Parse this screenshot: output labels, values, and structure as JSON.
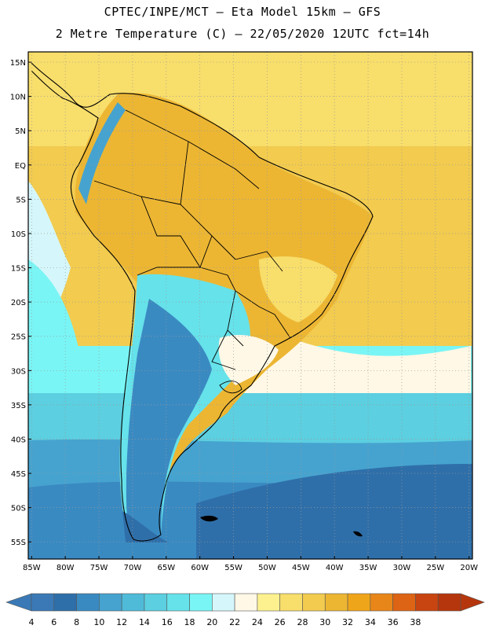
{
  "title_line1": "CPTEC/INPE/MCT –  Eta Model 15km – GFS",
  "title_line2": "2 Metre Temperature (C) – 22/05/2020 12UTC fct=14h",
  "map": {
    "lat_labels": [
      "15N",
      "10N",
      "5N",
      "EQ",
      "5S",
      "10S",
      "15S",
      "20S",
      "25S",
      "30S",
      "35S",
      "40S",
      "45S",
      "50S",
      "55S"
    ],
    "lon_labels": [
      "85W",
      "80W",
      "75W",
      "70W",
      "65W",
      "60W",
      "55W",
      "50W",
      "45W",
      "40W",
      "35W",
      "30W",
      "25W",
      "20W"
    ],
    "lat_range": [
      16.5,
      -57.5
    ],
    "lon_range": [
      -85.5,
      -19.5
    ]
  },
  "colorbar": {
    "labels": [
      "4",
      "6",
      "8",
      "10",
      "12",
      "14",
      "16",
      "18",
      "20",
      "22",
      "24",
      "26",
      "28",
      "30",
      "32",
      "34",
      "36",
      "38"
    ],
    "colors": [
      "#3a79b6",
      "#2f6fa9",
      "#3a8ac2",
      "#46a3cf",
      "#4fbbd9",
      "#5ccfe0",
      "#66e2ea",
      "#7af5f5",
      "#d5f7fb",
      "#fff8e6",
      "#fdf18f",
      "#f8de6b",
      "#f2cb4f",
      "#ecb633",
      "#efa51a",
      "#e8861a",
      "#dc6414",
      "#c84410",
      "#b5360c"
    ],
    "low_arrow_color": "#3a79b6",
    "high_arrow_color": "#b5360c"
  }
}
